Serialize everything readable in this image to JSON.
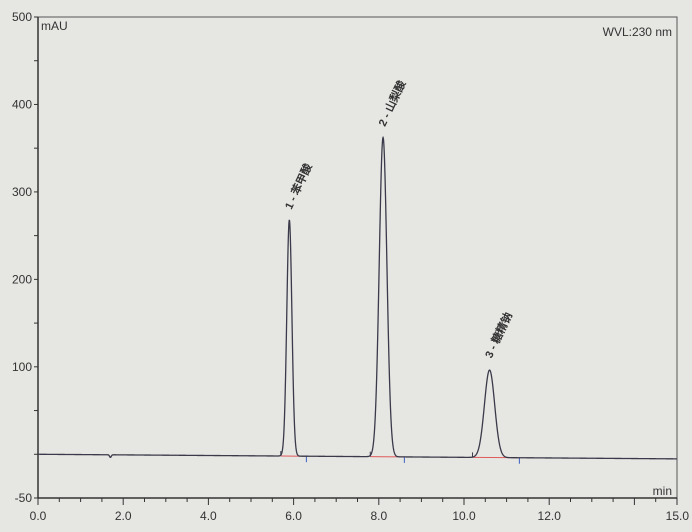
{
  "chart_data": {
    "type": "line",
    "ylabel": "mAU",
    "xlabel": "min",
    "annotation": "WVL:230 nm",
    "xlim": [
      0,
      15
    ],
    "ylim": [
      -50,
      500
    ],
    "x_ticks": [
      "0.0",
      "2.0",
      "4.0",
      "6.0",
      "8.0",
      "10.0",
      "12.0",
      "15.0"
    ],
    "x_tick_values": [
      0,
      2,
      4,
      6,
      8,
      10,
      12,
      15
    ],
    "y_ticks": [
      "-50",
      "100",
      "200",
      "300",
      "400",
      "500"
    ],
    "y_tick_values": [
      -50,
      100,
      200,
      300,
      400,
      500
    ],
    "grid": false,
    "colors": {
      "trace": "#3a3a4a",
      "baseline_marks": "#e05a5a",
      "peak_marks": "#3a5fc0"
    },
    "baseline_disturbance": {
      "time": 1.7,
      "value": -3
    },
    "peaks": [
      {
        "label": "1 - 苯甲酸",
        "time": 5.9,
        "height": 270,
        "width": 0.06,
        "start": 5.7,
        "end": 6.3
      },
      {
        "label": "2 - 山梨酸",
        "time": 8.1,
        "height": 365,
        "width": 0.09,
        "start": 7.8,
        "end": 8.6
      },
      {
        "label": "3 - 糖精钠",
        "time": 10.6,
        "height": 100,
        "width": 0.12,
        "start": 10.2,
        "end": 11.3
      }
    ]
  }
}
